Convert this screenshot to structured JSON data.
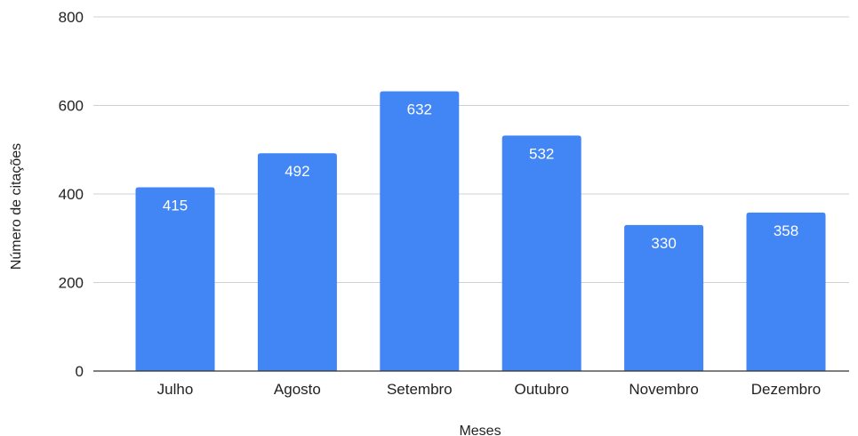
{
  "chart_data": {
    "type": "bar",
    "categories": [
      "Julho",
      "Agosto",
      "Setembro",
      "Outubro",
      "Novembro",
      "Dezembro"
    ],
    "values": [
      415,
      492,
      632,
      532,
      330,
      358
    ],
    "data_labels": [
      "415",
      "492",
      "632",
      "532",
      "330",
      "358"
    ],
    "xlabel": "Meses",
    "ylabel": "Número de citações",
    "ylim": [
      0,
      800
    ],
    "yticks": [
      0,
      200,
      400,
      600,
      800
    ],
    "grid": true,
    "legend": "none",
    "bar_color": "#4285f4"
  }
}
